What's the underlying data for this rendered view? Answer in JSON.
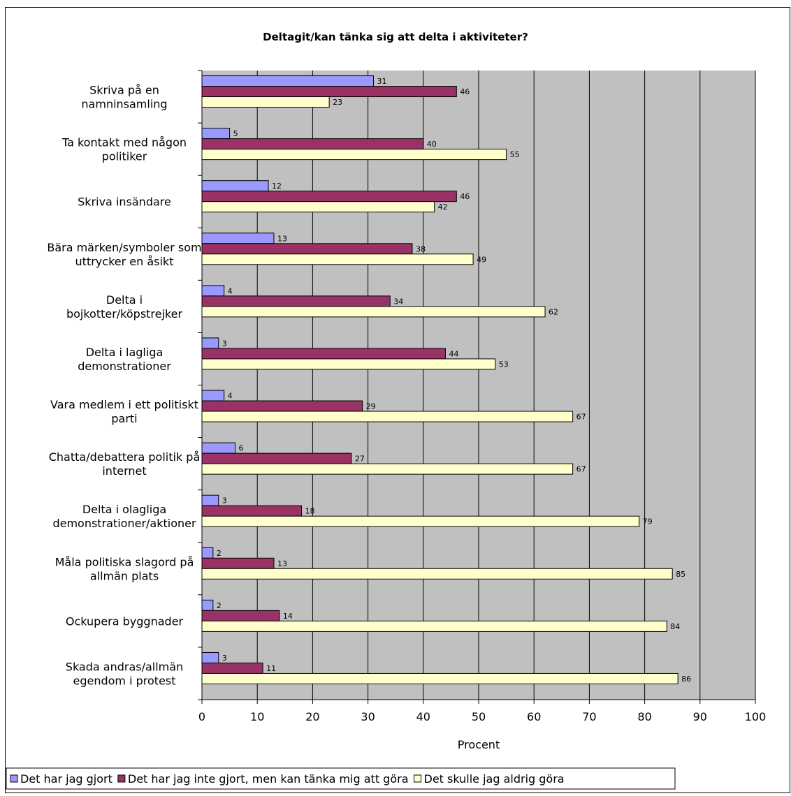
{
  "chart_data": {
    "type": "bar",
    "orientation": "horizontal",
    "title": "Deltagit/kan tänka sig att delta i aktiviteter?",
    "xlabel": "Procent",
    "ylabel": "",
    "xlim": [
      0,
      100
    ],
    "xticks": [
      0,
      10,
      20,
      30,
      40,
      50,
      60,
      70,
      80,
      90,
      100
    ],
    "grid": true,
    "legend_position": "bottom",
    "categories": [
      [
        "Skriva på en",
        "namninsamling"
      ],
      [
        "Ta kontakt med någon",
        "politiker"
      ],
      [
        "Skriva insändare"
      ],
      [
        "Bära märken/symboler som",
        "uttrycker en åsikt"
      ],
      [
        "Delta i",
        "bojkotter/köpstrejker"
      ],
      [
        "Delta i lagliga",
        "demonstrationer"
      ],
      [
        "Vara medlem i ett politiskt",
        "parti"
      ],
      [
        "Chatta/debattera politik på",
        "internet"
      ],
      [
        "Delta i olagliga",
        "demonstrationer/aktioner"
      ],
      [
        "Måla politiska slagord på",
        "allmän plats"
      ],
      [
        "Ockupera byggnader"
      ],
      [
        "Skada andras/allmän",
        "egendom i protest"
      ]
    ],
    "series": [
      {
        "name": "Det har jag gjort",
        "color": "#9999ff",
        "values": [
          31,
          5,
          12,
          13,
          4,
          3,
          4,
          6,
          3,
          2,
          2,
          3
        ]
      },
      {
        "name": "Det har jag inte gjort, men kan tänka mig att göra",
        "color": "#993366",
        "values": [
          46,
          40,
          46,
          38,
          34,
          44,
          29,
          27,
          18,
          13,
          14,
          11
        ]
      },
      {
        "name": "Det skulle jag aldrig göra",
        "color": "#ffffcc",
        "values": [
          23,
          55,
          42,
          49,
          62,
          53,
          67,
          67,
          79,
          85,
          84,
          86
        ]
      }
    ],
    "plot_background": "#c0c0c0"
  }
}
